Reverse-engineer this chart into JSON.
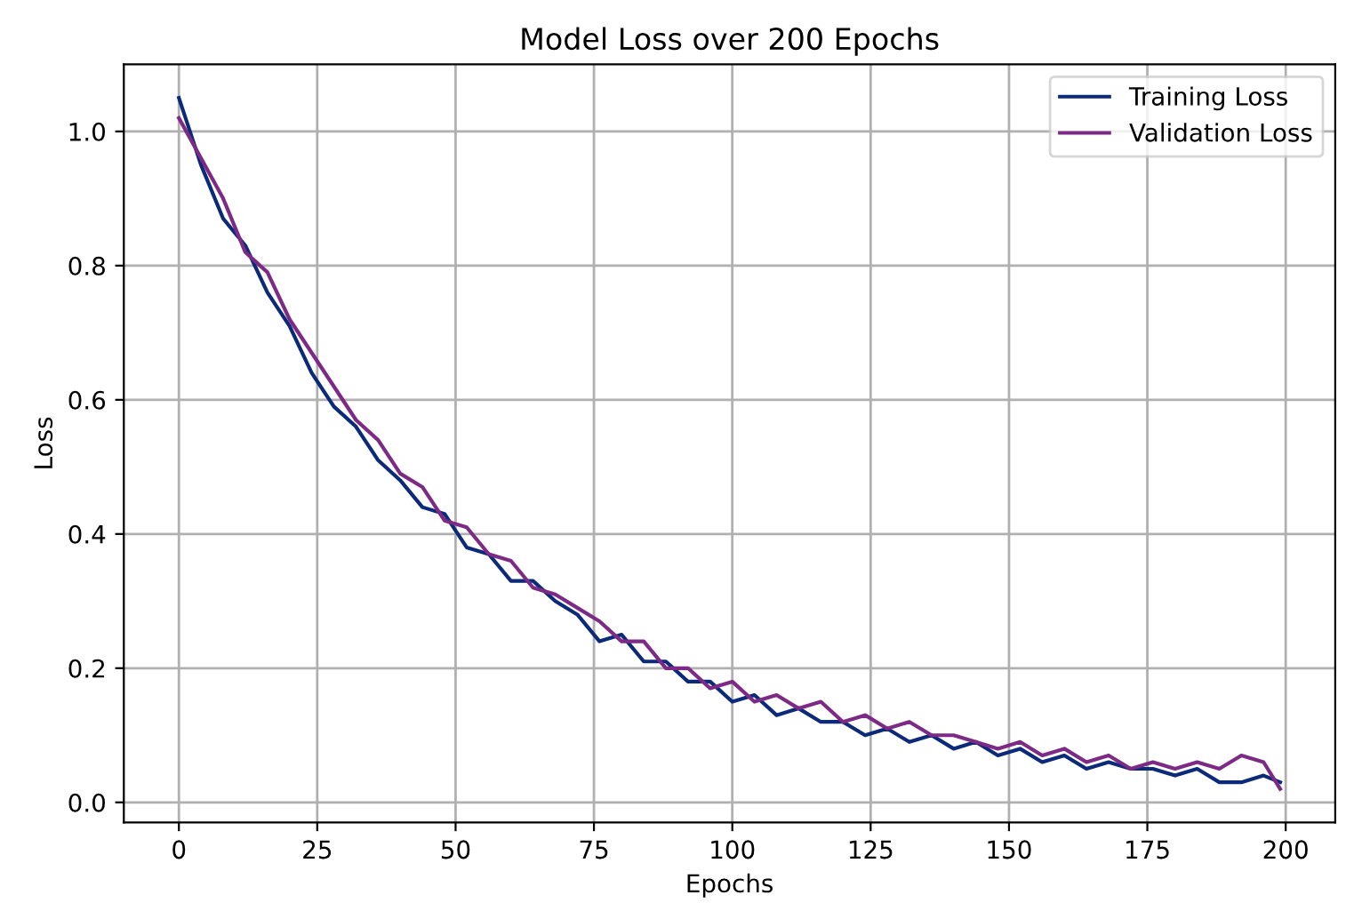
{
  "chart_data": {
    "type": "line",
    "title": "Model Loss over 200 Epochs",
    "xlabel": "Epochs",
    "ylabel": "Loss",
    "x": [
      0,
      4,
      8,
      12,
      16,
      20,
      24,
      28,
      32,
      36,
      40,
      44,
      48,
      52,
      56,
      60,
      64,
      68,
      72,
      76,
      80,
      84,
      88,
      92,
      96,
      100,
      104,
      108,
      112,
      116,
      120,
      124,
      128,
      132,
      136,
      140,
      144,
      148,
      152,
      156,
      160,
      164,
      168,
      172,
      176,
      180,
      184,
      188,
      192,
      196,
      199
    ],
    "series": [
      {
        "name": "Training Loss",
        "color": "#0b2a7a",
        "values": [
          1.05,
          0.95,
          0.87,
          0.83,
          0.76,
          0.71,
          0.64,
          0.59,
          0.56,
          0.51,
          0.48,
          0.44,
          0.43,
          0.38,
          0.37,
          0.33,
          0.33,
          0.3,
          0.28,
          0.24,
          0.25,
          0.21,
          0.21,
          0.18,
          0.18,
          0.15,
          0.16,
          0.13,
          0.14,
          0.12,
          0.12,
          0.1,
          0.11,
          0.09,
          0.1,
          0.08,
          0.09,
          0.07,
          0.08,
          0.06,
          0.07,
          0.05,
          0.06,
          0.05,
          0.05,
          0.04,
          0.05,
          0.03,
          0.03,
          0.04,
          0.03
        ]
      },
      {
        "name": "Validation Loss",
        "color": "#7d2a86",
        "values": [
          1.02,
          0.96,
          0.9,
          0.82,
          0.79,
          0.72,
          0.67,
          0.62,
          0.57,
          0.54,
          0.49,
          0.47,
          0.42,
          0.41,
          0.37,
          0.36,
          0.32,
          0.31,
          0.29,
          0.27,
          0.24,
          0.24,
          0.2,
          0.2,
          0.17,
          0.18,
          0.15,
          0.16,
          0.14,
          0.15,
          0.12,
          0.13,
          0.11,
          0.12,
          0.1,
          0.1,
          0.09,
          0.08,
          0.09,
          0.07,
          0.08,
          0.06,
          0.07,
          0.05,
          0.06,
          0.05,
          0.06,
          0.05,
          0.07,
          0.06,
          0.02
        ]
      }
    ],
    "xlim": [
      -9.95,
      208.95
    ],
    "ylim": [
      -0.03,
      1.1
    ],
    "xticks": [
      0,
      25,
      50,
      75,
      100,
      125,
      150,
      175,
      200
    ],
    "yticks": [
      {
        "value": 0,
        "label": "0.0"
      },
      {
        "value": 0.2,
        "label": "0.2"
      },
      {
        "value": 0.4,
        "label": "0.4"
      },
      {
        "value": 0.6,
        "label": "0.6"
      },
      {
        "value": 0.8,
        "label": "0.8"
      },
      {
        "value": 1.0,
        "label": "1.0"
      }
    ],
    "grid": true,
    "legend": "top right",
    "marker": "none",
    "line_style": "solid"
  }
}
